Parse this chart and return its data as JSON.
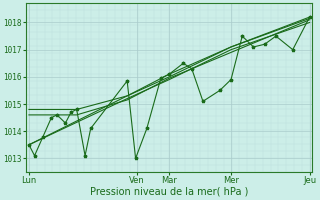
{
  "title": "",
  "xlabel": "Pression niveau de la mer( hPa )",
  "bg_color": "#cceee8",
  "plot_bg_color": "#cceee8",
  "grid_color_major": "#aacccc",
  "grid_color_minor": "#bbdddd",
  "line_color": "#1a6b1a",
  "marker_color": "#1a6b1a",
  "tick_color": "#1a6b1a",
  "border_color": "#2a7a2a",
  "ylim": [
    1012.5,
    1018.7
  ],
  "yticks": [
    1013,
    1014,
    1015,
    1016,
    1017,
    1018
  ],
  "day_labels": [
    "Lun",
    "Ven",
    "Mar",
    "Mer",
    "Jeu"
  ],
  "day_positions": [
    0.0,
    0.385,
    0.5,
    0.72,
    1.0
  ],
  "figsize": [
    3.2,
    2.0
  ],
  "dpi": 100,
  "series_zigzag_x": [
    0.0,
    0.02,
    0.05,
    0.08,
    0.1,
    0.13,
    0.15,
    0.17,
    0.2,
    0.22,
    0.35,
    0.38,
    0.42,
    0.47,
    0.5,
    0.55,
    0.58,
    0.62,
    0.68,
    0.72,
    0.76,
    0.8,
    0.84,
    0.88,
    0.94,
    1.0
  ],
  "series_zigzag_y": [
    1013.5,
    1013.1,
    1013.8,
    1014.5,
    1014.6,
    1014.3,
    1014.7,
    1014.8,
    1013.1,
    1014.1,
    1015.85,
    1013.0,
    1014.1,
    1015.95,
    1016.1,
    1016.5,
    1016.3,
    1015.1,
    1015.5,
    1015.9,
    1017.5,
    1017.1,
    1017.2,
    1017.5,
    1017.0,
    1018.2
  ],
  "trend_lines": [
    {
      "x": [
        0.0,
        0.35,
        0.5,
        0.72,
        1.0
      ],
      "y": [
        1013.5,
        1015.3,
        1016.0,
        1017.1,
        1018.15
      ]
    },
    {
      "x": [
        0.0,
        0.35,
        0.5,
        0.72,
        1.0
      ],
      "y": [
        1013.5,
        1015.2,
        1015.9,
        1017.0,
        1018.0
      ]
    },
    {
      "x": [
        0.0,
        0.17,
        0.35,
        0.5,
        0.72,
        1.0
      ],
      "y": [
        1014.8,
        1014.8,
        1015.3,
        1016.1,
        1017.1,
        1018.2
      ]
    },
    {
      "x": [
        0.0,
        0.17,
        0.35,
        0.5,
        0.72,
        1.0
      ],
      "y": [
        1014.6,
        1014.6,
        1015.15,
        1015.95,
        1016.9,
        1018.1
      ]
    }
  ]
}
